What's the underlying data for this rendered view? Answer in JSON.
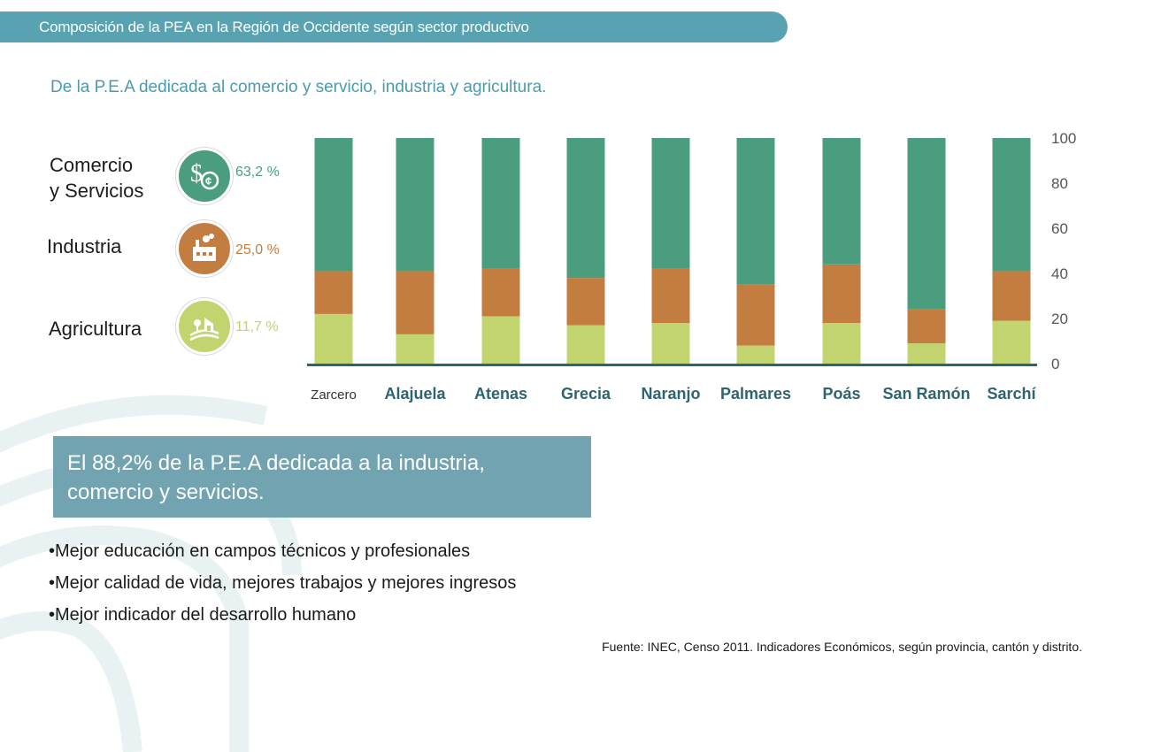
{
  "header": {
    "title": "Composición de la PEA en la Región de Occidente según sector productivo"
  },
  "subtitle": "De la P.E.A dedicada al comercio y servicio, industria y agricultura.",
  "legend": [
    {
      "label_line1": "Comercio",
      "label_line2": "y Servicios",
      "pct": "63,2  %",
      "color": "#4b9e7d",
      "icon": "money-icon"
    },
    {
      "label_line1": "Industria",
      "label_line2": "",
      "pct": "25,0 %",
      "color": "#c47d40",
      "icon": "factory-icon"
    },
    {
      "label_line1": "Agricultura",
      "label_line2": "",
      "pct": "11,7 %",
      "color": "#c1d46f",
      "icon": "farm-icon"
    }
  ],
  "chart_data": {
    "type": "bar",
    "stacked": true,
    "categories": [
      "Zarcero",
      "Alajuela",
      "Atenas",
      "Grecia",
      "Naranjo",
      "Palmares",
      "Poás",
      "San Ramón",
      "Sarchí"
    ],
    "series": [
      {
        "name": "Agricultura",
        "color": "#c1d46f",
        "values": [
          22,
          13,
          21,
          17,
          18,
          8,
          18,
          9,
          19
        ]
      },
      {
        "name": "Industria",
        "color": "#c47d40",
        "values": [
          19,
          28,
          21,
          21,
          24,
          27,
          26,
          15,
          22
        ]
      },
      {
        "name": "Comercio y Servicios",
        "color": "#4b9e7d",
        "values": [
          59,
          59,
          58,
          62,
          58,
          65,
          56,
          76,
          59
        ]
      }
    ],
    "y_ticks": [
      "0",
      "20",
      "40",
      "60",
      "80",
      "100"
    ],
    "ylim": [
      0,
      100
    ],
    "axis_side": "right",
    "baseline_color": "#2e6470"
  },
  "callout": {
    "text": "El 88,2% de la  P.E.A dedicada a la industria, comercio y servicios."
  },
  "bullets": [
    "•Mejor educación en campos técnicos y profesionales",
    "•Mejor calidad de vida, mejores trabajos y mejores ingresos",
    "•Mejor indicador del desarrollo humano"
  ],
  "source": "Fuente: INEC, Censo 2011. Indicadores Económicos, según provincia, cantón  y distrito."
}
